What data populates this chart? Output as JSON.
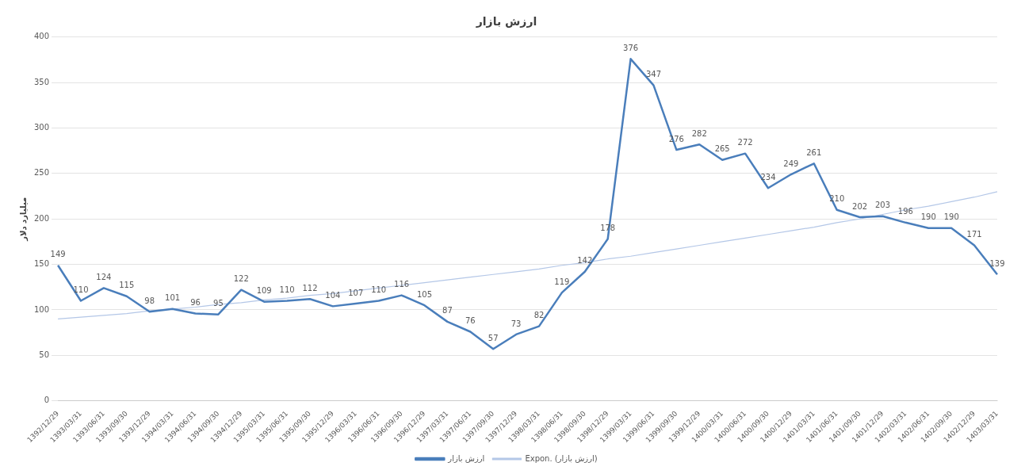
{
  "chart_data": {
    "type": "line",
    "title": "ارزش بازار",
    "ylabel": "میلیارد دلار",
    "categories": [
      "1392/12/29",
      "1393/03/31",
      "1393/06/31",
      "1393/09/30",
      "1393/12/29",
      "1394/03/31",
      "1394/06/31",
      "1394/09/30",
      "1394/12/29",
      "1395/03/31",
      "1395/06/31",
      "1395/09/30",
      "1395/12/29",
      "1396/03/31",
      "1396/06/31",
      "1396/09/30",
      "1396/12/29",
      "1397/03/31",
      "1397/06/31",
      "1397/09/30",
      "1397/12/29",
      "1398/03/31",
      "1398/06/31",
      "1398/09/30",
      "1398/12/29",
      "1399/03/31",
      "1399/06/31",
      "1399/09/30",
      "1399/12/29",
      "1400/03/31",
      "1400/06/31",
      "1400/09/30",
      "1400/12/29",
      "1401/03/31",
      "1401/06/31",
      "1401/09/30",
      "1401/12/29",
      "1402/03/31",
      "1402/06/31",
      "1402/09/30",
      "1402/12/29",
      "1403/03/31"
    ],
    "series": [
      {
        "name": "ارزش بازار",
        "color": "#4a7ebb",
        "values": [
          149,
          110,
          124,
          115,
          98,
          101,
          96,
          95,
          122,
          109,
          110,
          112,
          104,
          107,
          110,
          116,
          105,
          87,
          76,
          57,
          73,
          82,
          119,
          142,
          178,
          376,
          347,
          276,
          282,
          265,
          272,
          234,
          249,
          261,
          210,
          202,
          203,
          196,
          190,
          190,
          171,
          139
        ],
        "value_labels": [
          "149",
          "110",
          "124",
          "115",
          "98",
          "101",
          "96",
          "95",
          "122",
          "109",
          "110",
          "112",
          "104",
          "107",
          "110",
          "116",
          "105",
          "87",
          "76",
          "57",
          "73",
          "82",
          "119",
          "142",
          "178",
          "376",
          "347",
          "276",
          "282",
          "265",
          "272",
          "234",
          "249",
          "261",
          "210",
          "202",
          "203",
          "196",
          "190",
          "190",
          "171",
          "139"
        ]
      },
      {
        "name": "Expon. (ارزش بازار)",
        "type": "line",
        "color": "#b4c7e7",
        "values": [
          90,
          92,
          94,
          96,
          99,
          101,
          103,
          106,
          108,
          111,
          113,
          116,
          118,
          121,
          124,
          127,
          130,
          133,
          136,
          139,
          142,
          145,
          149,
          152,
          156,
          159,
          163,
          167,
          171,
          175,
          179,
          183,
          187,
          191,
          196,
          200,
          205,
          210,
          214,
          219,
          224,
          230
        ]
      }
    ],
    "ylim": [
      0,
      400
    ],
    "yticks": [
      0,
      50,
      100,
      150,
      200,
      250,
      300,
      350,
      400
    ],
    "grid": "y",
    "legend": "bottom",
    "marker": "none",
    "line_style": "solid"
  }
}
